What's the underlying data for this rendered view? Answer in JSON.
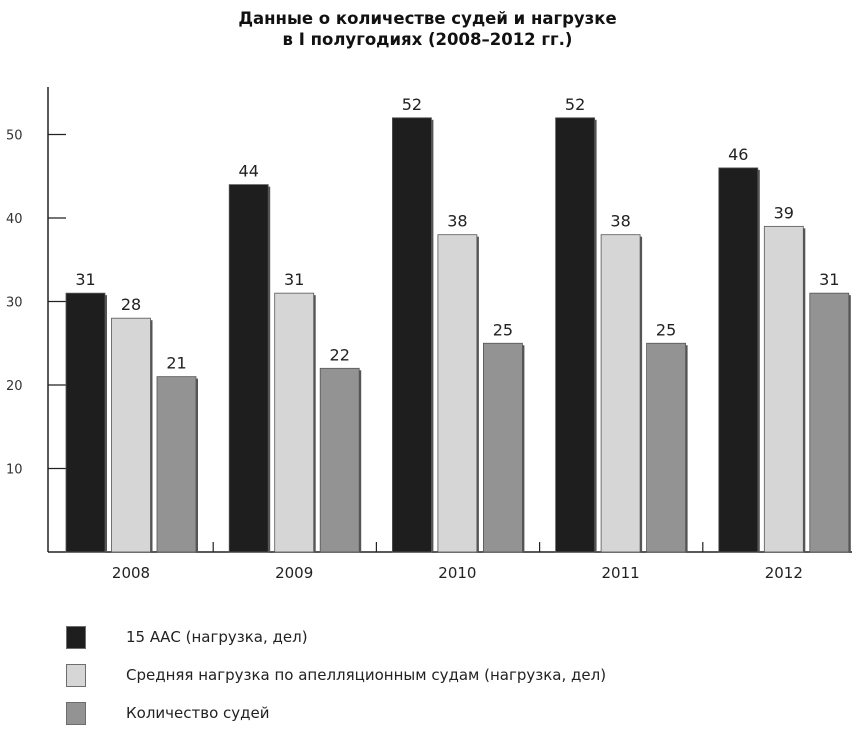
{
  "chart_data": {
    "type": "bar",
    "title_lines": [
      "Данные о количестве судей и нагрузке",
      "в I полугодиях (2008–2012 гг.)"
    ],
    "categories": [
      "2008",
      "2009",
      "2010",
      "2011",
      "2012"
    ],
    "series": [
      {
        "name": "15 ААС (нагрузка, дел)",
        "color": "#1e1e1e",
        "values": [
          31,
          44,
          52,
          52,
          46
        ]
      },
      {
        "name": "Средняя нагрузка по апелляционным судам (нагрузка, дел)",
        "color": "#d6d6d6",
        "values": [
          28,
          31,
          38,
          38,
          39
        ]
      },
      {
        "name": "Количество судей",
        "color": "#939393",
        "values": [
          21,
          22,
          25,
          25,
          31
        ]
      }
    ],
    "yticks": [
      10,
      20,
      30,
      40,
      50
    ],
    "ylim": [
      0,
      57
    ],
    "xlabel": "",
    "ylabel": "",
    "grid": false,
    "legend_position": "bottom-left"
  }
}
